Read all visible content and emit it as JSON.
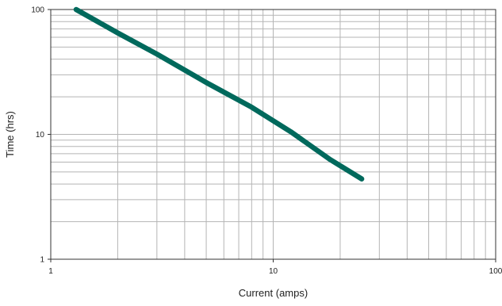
{
  "chart_data": {
    "type": "line",
    "title": "",
    "xlabel": "Current (amps)",
    "ylabel": "Time (hrs)",
    "xscale": "log",
    "yscale": "log",
    "xlim": [
      1,
      100
    ],
    "ylim": [
      1,
      100
    ],
    "x_tick_labels": [
      "1",
      "10",
      "100"
    ],
    "y_tick_labels": [
      "1",
      "10",
      "100"
    ],
    "grid": true,
    "legend": "none",
    "series": [
      {
        "color": "#00695c",
        "x": [
          1.3,
          2,
          3,
          5,
          8,
          12,
          18,
          25
        ],
        "y": [
          100,
          65,
          44,
          26,
          16.5,
          10.5,
          6.3,
          4.4
        ]
      }
    ]
  }
}
